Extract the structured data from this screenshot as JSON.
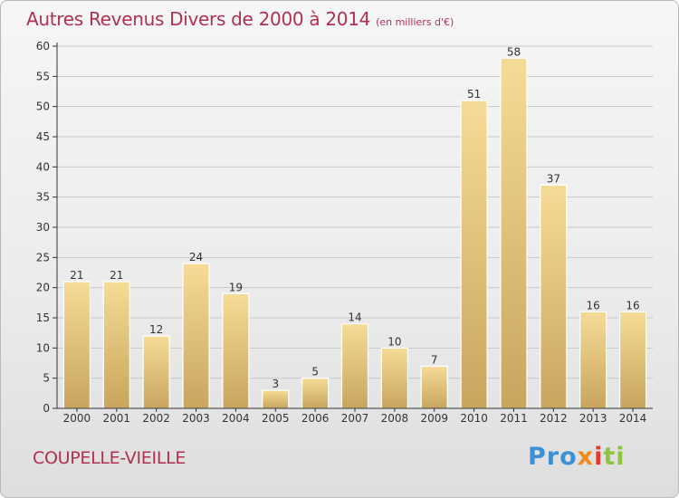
{
  "header": {
    "title": "Autres Revenus Divers de 2000 à 2014",
    "unit": "(en milliers d'€)"
  },
  "footer": {
    "place": "COUPELLE-VIEILLE",
    "logo_parts": [
      "Pro",
      "x",
      "i",
      "ti"
    ]
  },
  "colors": {
    "title": "#b03052",
    "bar_light": "#f5dc96",
    "bar_dark": "#c9a55e",
    "axis": "#333333"
  },
  "chart_data": {
    "type": "bar",
    "title": "Autres Revenus Divers de 2000 à 2014",
    "xlabel": "",
    "ylabel": "",
    "categories": [
      "2000",
      "2001",
      "2002",
      "2003",
      "2004",
      "2005",
      "2006",
      "2007",
      "2008",
      "2009",
      "2010",
      "2011",
      "2012",
      "2013",
      "2014"
    ],
    "values": [
      21,
      21,
      12,
      24,
      19,
      3,
      5,
      14,
      10,
      7,
      51,
      58,
      37,
      16,
      16
    ],
    "ylim": [
      0,
      60
    ],
    "yticks": [
      0,
      5,
      10,
      15,
      20,
      25,
      30,
      35,
      40,
      45,
      50,
      55,
      60
    ],
    "grid": true,
    "legend": "none"
  }
}
